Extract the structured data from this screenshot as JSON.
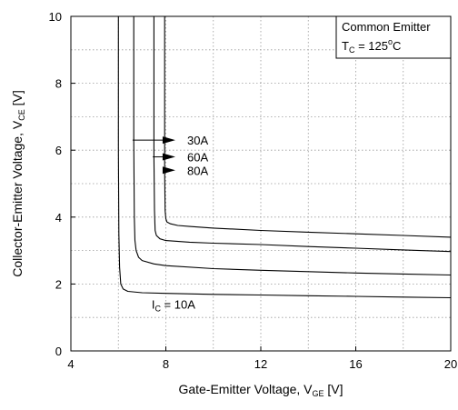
{
  "chart_data": {
    "type": "line",
    "title": "",
    "xlabel": {
      "main": "Gate-Emitter Voltage, V",
      "sub": "GE",
      "unit": " [V]"
    },
    "ylabel": {
      "main": "Collector-Emitter Voltage, V",
      "sub": "CE",
      "unit": " [V]"
    },
    "xlim": [
      4,
      20
    ],
    "ylim": [
      0,
      10
    ],
    "x_ticks": [
      "4",
      "8",
      "12",
      "16",
      "20"
    ],
    "y_ticks": [
      "0",
      "2",
      "4",
      "6",
      "8",
      "10"
    ],
    "grid": "dotted",
    "legend": {
      "placement": "top-right",
      "line1": "Common Emitter",
      "line2_main": "T",
      "line2_sub": "C",
      "line2_rest": " = 125",
      "line2_sup": "o",
      "line2_end": "C"
    },
    "series": [
      {
        "label": "10A",
        "x": [
          6.0,
          6.0,
          6.02,
          6.05,
          6.1,
          6.2,
          6.4,
          7.0,
          8,
          10,
          12,
          14,
          16,
          18,
          20
        ],
        "y": [
          10,
          6.0,
          3.5,
          2.5,
          2.0,
          1.85,
          1.78,
          1.74,
          1.72,
          1.69,
          1.67,
          1.65,
          1.63,
          1.61,
          1.59
        ]
      },
      {
        "label": "30A",
        "x": [
          6.65,
          6.65,
          6.67,
          6.7,
          6.75,
          6.85,
          7.0,
          7.5,
          8,
          10,
          12,
          14,
          16,
          18,
          20
        ],
        "y": [
          10,
          6.3,
          4.0,
          3.3,
          3.0,
          2.8,
          2.7,
          2.6,
          2.55,
          2.46,
          2.41,
          2.37,
          2.33,
          2.3,
          2.27
        ]
      },
      {
        "label": "60A",
        "x": [
          7.5,
          7.5,
          7.52,
          7.55,
          7.6,
          7.75,
          8.0,
          9,
          10,
          12,
          14,
          16,
          18,
          20
        ],
        "y": [
          10,
          5.8,
          4.2,
          3.6,
          3.45,
          3.35,
          3.3,
          3.25,
          3.22,
          3.18,
          3.12,
          3.07,
          3.02,
          2.97
        ]
      },
      {
        "label": "80A",
        "x": [
          7.95,
          7.95,
          7.97,
          8.0,
          8.05,
          8.2,
          8.5,
          9,
          10,
          12,
          14,
          16,
          18,
          20
        ],
        "y": [
          10,
          5.4,
          4.2,
          3.95,
          3.85,
          3.8,
          3.75,
          3.72,
          3.67,
          3.6,
          3.55,
          3.5,
          3.45,
          3.4
        ]
      }
    ],
    "annotations": [
      {
        "label": "30A",
        "arrow_from": [
          6.6,
          6.3
        ],
        "arrow_to": [
          8.4,
          6.3
        ],
        "text_at": [
          8.9,
          6.3
        ]
      },
      {
        "label": "60A",
        "arrow_from": [
          7.45,
          5.8
        ],
        "arrow_to": [
          8.4,
          5.8
        ],
        "text_at": [
          8.9,
          5.8
        ]
      },
      {
        "label": "80A",
        "arrow_from": [
          7.95,
          5.4
        ],
        "arrow_to": [
          8.4,
          5.4
        ],
        "text_at": [
          8.9,
          5.4
        ]
      }
    ],
    "ic_label": {
      "main": "I",
      "sub": "C",
      "rest": " = 10A",
      "text_at": [
        7.4,
        1.4
      ]
    }
  }
}
